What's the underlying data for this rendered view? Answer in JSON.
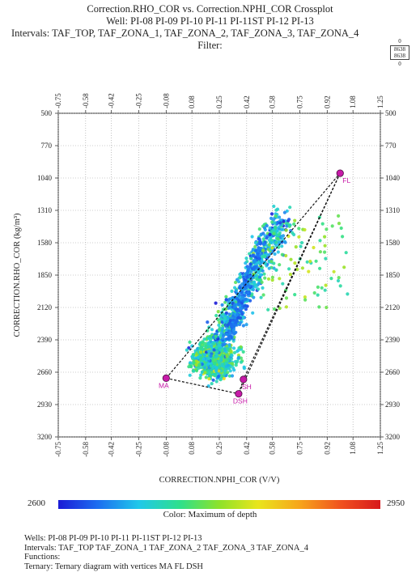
{
  "titles": {
    "line1": "Correction.RHO_COR vs. Correction.NPHI_COR Crossplot",
    "line2": "Well: PI-08 PI-09 PI-10 PI-11 PI-11ST PI-12 PI-13",
    "line3": "Intervals: TAF_TOP, TAF_ZONA_1, TAF_ZONA_2, TAF_ZONA_3, TAF_ZONA_4",
    "line4": "Filter:"
  },
  "count_legend": {
    "top": "0",
    "mid1": "8638",
    "mid2": "8638",
    "bottom": "0"
  },
  "chart_data": {
    "type": "scatter",
    "xlabel": "CORRECTION.NPHI_COR (V/V)",
    "ylabel": "CORRECTION.RHO_COR (kg/m³)",
    "xlim": [
      -0.75,
      1.25
    ],
    "ylim": [
      500,
      3200
    ],
    "x_ticks": [
      "-0.75",
      "-0.58",
      "-0.42",
      "-0.25",
      "-0.08",
      "0.08",
      "0.25",
      "0.42",
      "0.58",
      "0.75",
      "0.92",
      "1.08",
      "1.25"
    ],
    "y_ticks": [
      "500",
      "770",
      "1040",
      "1310",
      "1580",
      "1850",
      "2120",
      "2390",
      "2660",
      "2930",
      "3200"
    ],
    "y_ticks_right_last": "3200",
    "grid": true,
    "color_variable": "Maximum of depth",
    "color_range": [
      2600,
      2950
    ],
    "ternary": {
      "vertices": [
        {
          "name": "MA",
          "x": -0.08,
          "y": 2710
        },
        {
          "name": "FL",
          "x": 1.0,
          "y": 1000
        },
        {
          "name": "DSH",
          "x": 0.37,
          "y": 2840
        },
        {
          "name": "SH",
          "x": 0.4,
          "y": 2720
        }
      ]
    },
    "point_count": 8638
  },
  "colorbar": {
    "min_label": "2600",
    "max_label": "2950",
    "title": "Color: Maximum of depth"
  },
  "footer": {
    "wells": "Wells: PI-08 PI-09 PI-10 PI-11 PI-11ST PI-12 PI-13",
    "intervals": "Intervals: TAF_TOP TAF_ZONA_1 TAF_ZONA_2 TAF_ZONA_3 TAF_ZONA_4",
    "functions": "Functions:",
    "ternary": "Ternary: Ternary diagram with vertices MA FL DSH"
  },
  "colors": {
    "vertex": "#c71aa8",
    "grid": "#9a9a9a",
    "triangle": "#111111"
  }
}
